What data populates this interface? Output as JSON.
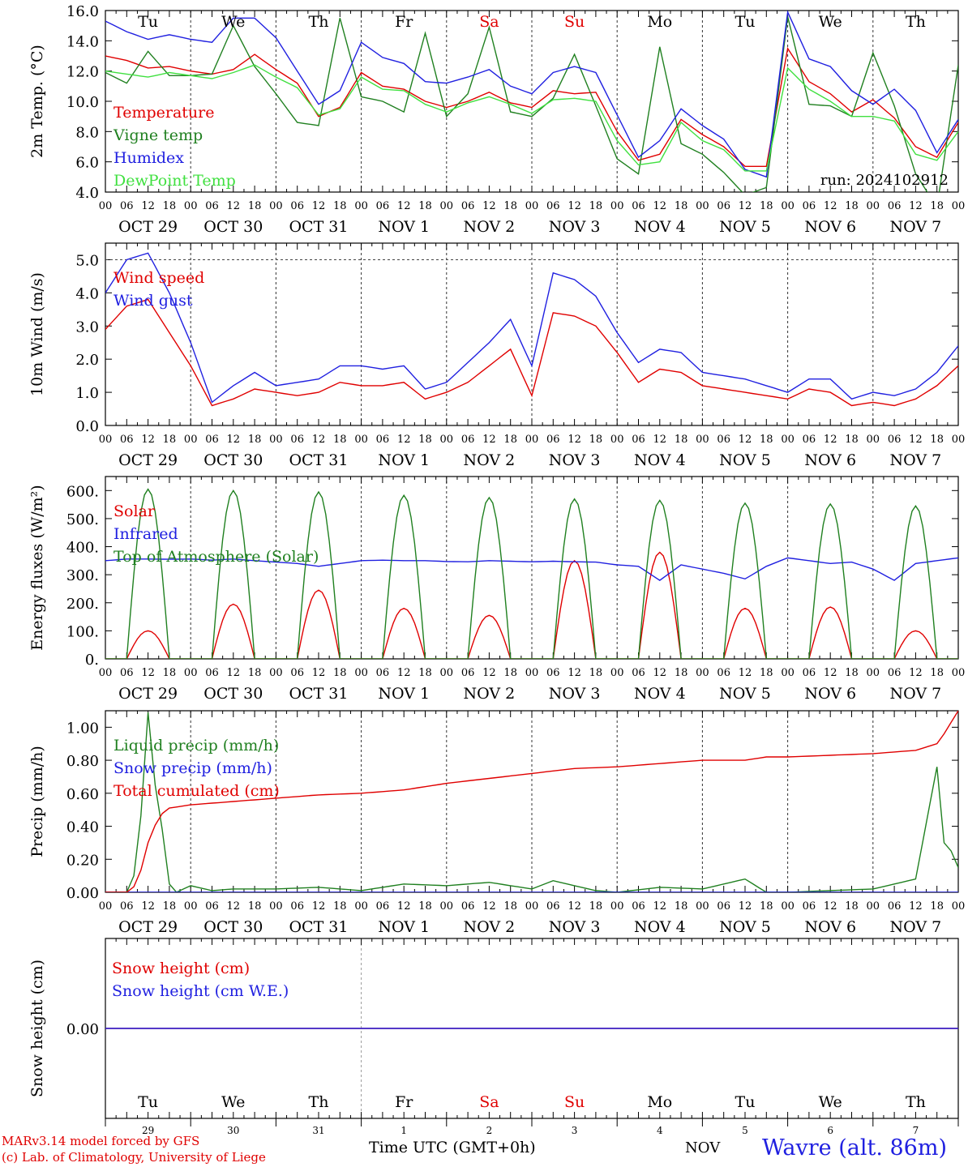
{
  "run_label": "run: 2024102912",
  "weekdays": [
    {
      "label": "Tu",
      "color": "#000000"
    },
    {
      "label": "We",
      "color": "#000000"
    },
    {
      "label": "Th",
      "color": "#000000"
    },
    {
      "label": "Fr",
      "color": "#000000"
    },
    {
      "label": "Sa",
      "color": "#e00000"
    },
    {
      "label": "Su",
      "color": "#e00000"
    },
    {
      "label": "Mo",
      "color": "#000000"
    },
    {
      "label": "Tu",
      "color": "#000000"
    },
    {
      "label": "We",
      "color": "#000000"
    },
    {
      "label": "Th",
      "color": "#000000"
    }
  ],
  "date_labels": [
    "OCT 29",
    "OCT 30",
    "OCT 31",
    "NOV  1",
    "NOV  2",
    "NOV  3",
    "NOV  4",
    "NOV  5",
    "NOV  6",
    "NOV  7"
  ],
  "hour_ticks": [
    "00",
    "06",
    "12",
    "18"
  ],
  "day_numbers": [
    "29",
    "30",
    "31",
    "1",
    "2",
    "3",
    "4",
    "5",
    "6",
    "7"
  ],
  "footer": {
    "credit_line1": "MARv3.14 model forced by GFS",
    "credit_line2": "(c) Lab. of Climatology, University of Liege",
    "x_title": "Time UTC (GMT+0h)",
    "month": "NOV",
    "station": "Wavre (alt. 86m)"
  },
  "chart_data": [
    {
      "type": "line",
      "ylabel": "2m Temp. (°C)",
      "ylim": [
        4.0,
        16.0
      ],
      "yticks": [
        "4.0",
        "6.0",
        "8.0",
        "10.0",
        "12.0",
        "14.0",
        "16.0"
      ],
      "x_unit": "hours since OCT 29 00 UTC",
      "series": [
        {
          "name": "Temperature",
          "color": "#e00000",
          "x": [
            0,
            6,
            12,
            18,
            24,
            30,
            36,
            42,
            48,
            54,
            60,
            66,
            72,
            78,
            84,
            90,
            96,
            102,
            108,
            114,
            120,
            126,
            132,
            138,
            144,
            150,
            156,
            162,
            168,
            174,
            180,
            186,
            192,
            198,
            204,
            210,
            216,
            222,
            228,
            234,
            240
          ],
          "values": [
            13.0,
            12.7,
            12.2,
            12.3,
            12.0,
            11.8,
            12.1,
            13.1,
            12.1,
            11.2,
            9.0,
            9.6,
            11.9,
            11.0,
            10.8,
            10.0,
            9.6,
            10.0,
            10.6,
            9.9,
            9.6,
            10.7,
            10.5,
            10.6,
            8.0,
            6.1,
            6.5,
            8.8,
            7.8,
            7.0,
            5.7,
            5.7,
            13.5,
            11.3,
            10.5,
            9.3,
            10.1,
            8.9,
            7.0,
            6.3,
            8.6
          ]
        },
        {
          "name": "Vigne temp",
          "color": "#208020",
          "x": [
            0,
            6,
            12,
            18,
            24,
            30,
            36,
            42,
            48,
            54,
            60,
            66,
            72,
            78,
            84,
            90,
            96,
            102,
            108,
            114,
            120,
            126,
            132,
            138,
            144,
            150,
            156,
            162,
            168,
            174,
            180,
            186,
            192,
            198,
            204,
            210,
            216,
            222,
            228,
            234,
            240
          ],
          "values": [
            11.9,
            11.2,
            13.3,
            11.7,
            11.7,
            11.8,
            15.0,
            12.3,
            10.5,
            8.6,
            8.4,
            15.5,
            10.3,
            10.0,
            9.3,
            14.5,
            9.0,
            10.5,
            14.9,
            9.3,
            9.0,
            10.2,
            13.1,
            9.7,
            6.2,
            5.2,
            13.6,
            7.2,
            6.5,
            5.3,
            3.8,
            4.3,
            15.6,
            9.8,
            9.7,
            9.0,
            13.2,
            9.7,
            5.2,
            3.0,
            12.4
          ]
        },
        {
          "name": "Humidex",
          "color": "#2020e0",
          "x": [
            0,
            6,
            12,
            18,
            24,
            30,
            36,
            42,
            48,
            54,
            60,
            66,
            72,
            78,
            84,
            90,
            96,
            102,
            108,
            114,
            120,
            126,
            132,
            138,
            144,
            150,
            156,
            162,
            168,
            174,
            180,
            186,
            192,
            198,
            204,
            210,
            216,
            222,
            228,
            234,
            240
          ],
          "values": [
            15.3,
            14.6,
            14.1,
            14.4,
            14.1,
            13.9,
            15.5,
            15.5,
            14.2,
            12.0,
            9.8,
            10.7,
            13.9,
            12.9,
            12.5,
            11.3,
            11.2,
            11.6,
            12.1,
            11.0,
            10.5,
            11.9,
            12.3,
            11.9,
            9.1,
            6.3,
            7.4,
            9.5,
            8.4,
            7.5,
            5.5,
            5.0,
            15.9,
            12.8,
            12.3,
            10.7,
            9.8,
            10.8,
            9.4,
            6.6,
            8.8
          ]
        },
        {
          "name": "DewPoint Temp",
          "color": "#40e040",
          "x": [
            0,
            6,
            12,
            18,
            24,
            30,
            36,
            42,
            48,
            54,
            60,
            66,
            72,
            78,
            84,
            90,
            96,
            102,
            108,
            114,
            120,
            126,
            132,
            138,
            144,
            150,
            156,
            162,
            168,
            174,
            180,
            186,
            192,
            198,
            204,
            210,
            216,
            222,
            228,
            234,
            240
          ],
          "values": [
            12.0,
            11.8,
            11.6,
            11.9,
            11.7,
            11.5,
            11.9,
            12.4,
            11.6,
            10.9,
            9.1,
            9.5,
            11.6,
            10.8,
            10.7,
            9.8,
            9.3,
            9.9,
            10.3,
            9.8,
            9.2,
            10.1,
            10.2,
            10.0,
            7.4,
            5.8,
            6.0,
            8.6,
            7.4,
            6.8,
            5.4,
            5.4,
            12.2,
            10.8,
            10.0,
            9.0,
            9.0,
            8.7,
            6.5,
            6.1,
            8.0
          ]
        }
      ]
    },
    {
      "type": "line",
      "ylabel": "10m Wind (m/s)",
      "ylim": [
        0.0,
        5.5
      ],
      "yticks": [
        "0.0",
        "1.0",
        "2.0",
        "3.0",
        "4.0",
        "5.0"
      ],
      "reference_line": 5.0,
      "x_unit": "hours since OCT 29 00 UTC",
      "series": [
        {
          "name": "Wind speed",
          "color": "#e00000",
          "x": [
            0,
            6,
            12,
            18,
            24,
            30,
            36,
            42,
            48,
            54,
            60,
            66,
            72,
            78,
            84,
            90,
            96,
            102,
            108,
            114,
            120,
            126,
            132,
            138,
            144,
            150,
            156,
            162,
            168,
            174,
            180,
            186,
            192,
            198,
            204,
            210,
            216,
            222,
            228,
            234,
            240
          ],
          "values": [
            2.9,
            3.6,
            3.8,
            2.8,
            1.8,
            0.6,
            0.8,
            1.1,
            1.0,
            0.9,
            1.0,
            1.3,
            1.2,
            1.2,
            1.3,
            0.8,
            1.0,
            1.3,
            1.8,
            2.3,
            0.9,
            3.4,
            3.3,
            3.0,
            2.2,
            1.3,
            1.7,
            1.6,
            1.2,
            1.1,
            1.0,
            0.9,
            0.8,
            1.1,
            1.0,
            0.6,
            0.7,
            0.6,
            0.8,
            1.2,
            1.8
          ]
        },
        {
          "name": "Wind gust",
          "color": "#2020e0",
          "x": [
            0,
            6,
            12,
            18,
            24,
            30,
            36,
            42,
            48,
            54,
            60,
            66,
            72,
            78,
            84,
            90,
            96,
            102,
            108,
            114,
            120,
            126,
            132,
            138,
            144,
            150,
            156,
            162,
            168,
            174,
            180,
            186,
            192,
            198,
            204,
            210,
            216,
            222,
            228,
            234,
            240
          ],
          "values": [
            4.0,
            5.0,
            5.2,
            4.0,
            2.5,
            0.7,
            1.2,
            1.6,
            1.2,
            1.3,
            1.4,
            1.8,
            1.8,
            1.7,
            1.8,
            1.1,
            1.3,
            1.9,
            2.5,
            3.2,
            1.8,
            4.6,
            4.4,
            3.9,
            2.8,
            1.9,
            2.3,
            2.2,
            1.6,
            1.5,
            1.4,
            1.2,
            1.0,
            1.4,
            1.4,
            0.8,
            1.0,
            0.9,
            1.1,
            1.6,
            2.4
          ]
        }
      ]
    },
    {
      "type": "line",
      "ylabel": "Energy fluxes (W/m²)",
      "ylim": [
        0,
        650
      ],
      "yticks": [
        "0.",
        "100.",
        "200.",
        "300.",
        "400.",
        "500.",
        "600."
      ],
      "x_unit": "hours since OCT 29 00 UTC",
      "series": [
        {
          "name": "Solar",
          "color": "#e00000",
          "kind": "diurnal",
          "daily_peak": [
            100,
            195,
            245,
            180,
            155,
            350,
            380,
            180,
            185,
            100
          ]
        },
        {
          "name": "Infrared",
          "color": "#2020e0",
          "x": [
            0,
            6,
            12,
            18,
            24,
            30,
            36,
            42,
            48,
            54,
            60,
            66,
            72,
            78,
            84,
            90,
            96,
            102,
            108,
            114,
            120,
            126,
            132,
            138,
            144,
            150,
            156,
            162,
            168,
            174,
            180,
            186,
            192,
            198,
            204,
            210,
            216,
            222,
            228,
            234,
            240
          ],
          "values": [
            350,
            356,
            356,
            355,
            356,
            352,
            356,
            350,
            345,
            340,
            330,
            340,
            350,
            352,
            350,
            350,
            347,
            346,
            350,
            348,
            346,
            348,
            346,
            345,
            335,
            330,
            280,
            335,
            320,
            305,
            285,
            330,
            360,
            350,
            340,
            345,
            320,
            280,
            340,
            350,
            360
          ]
        },
        {
          "name": "Top of Atmosphere (Solar)",
          "color": "#208020",
          "kind": "diurnal",
          "daily_peak": [
            605,
            600,
            595,
            583,
            575,
            570,
            565,
            555,
            552,
            545
          ]
        }
      ]
    },
    {
      "type": "line",
      "ylabel": "Precip (mm/h)",
      "ylim": [
        0.0,
        1.1
      ],
      "yticks": [
        "0.00",
        "0.20",
        "0.40",
        "0.60",
        "0.80",
        "1.00"
      ],
      "x_unit": "hours since OCT 29 00 UTC",
      "series": [
        {
          "name": "Liquid precip (mm/h)",
          "color": "#208020",
          "x": [
            0,
            6,
            9,
            12,
            14,
            16,
            18,
            20,
            24,
            30,
            36,
            48,
            60,
            72,
            84,
            96,
            108,
            120,
            126,
            138,
            144,
            156,
            168,
            180,
            186,
            192,
            204,
            216,
            228,
            234,
            236,
            238,
            240
          ],
          "values": [
            0.0,
            0.0,
            0.15,
            1.09,
            0.65,
            0.38,
            0.05,
            0.0,
            0.04,
            0.01,
            0.02,
            0.02,
            0.03,
            0.01,
            0.05,
            0.04,
            0.06,
            0.02,
            0.07,
            0.01,
            0.0,
            0.03,
            0.02,
            0.08,
            0.0,
            0.0,
            0.01,
            0.02,
            0.08,
            0.76,
            0.3,
            0.25,
            0.15
          ]
        },
        {
          "name": "Snow precip (mm/h)",
          "color": "#2020e0",
          "x": [
            0,
            240
          ],
          "values": [
            0.0,
            0.0
          ]
        },
        {
          "name": "Total cumulated (cm)",
          "color": "#e00000",
          "x": [
            0,
            6,
            9,
            12,
            15,
            18,
            24,
            36,
            48,
            60,
            72,
            84,
            96,
            108,
            120,
            132,
            144,
            156,
            168,
            180,
            186,
            192,
            204,
            216,
            228,
            234,
            236,
            240
          ],
          "values": [
            0.0,
            0.0,
            0.05,
            0.3,
            0.46,
            0.51,
            0.53,
            0.55,
            0.57,
            0.59,
            0.6,
            0.62,
            0.66,
            0.69,
            0.72,
            0.75,
            0.76,
            0.78,
            0.8,
            0.8,
            0.82,
            0.82,
            0.83,
            0.84,
            0.86,
            0.9,
            0.96,
            1.1
          ]
        }
      ]
    },
    {
      "type": "line",
      "ylabel": "Snow height (cm)",
      "ylim": [
        -1,
        1
      ],
      "yticks": [
        "0.00"
      ],
      "series": [
        {
          "name": "Snow height (cm)",
          "color": "#e00000",
          "x": [
            0,
            240
          ],
          "values": [
            0,
            0
          ]
        },
        {
          "name": "Snow height (cm W.E.)",
          "color": "#2020e0",
          "x": [
            0,
            240
          ],
          "values": [
            0,
            0
          ]
        }
      ]
    }
  ]
}
